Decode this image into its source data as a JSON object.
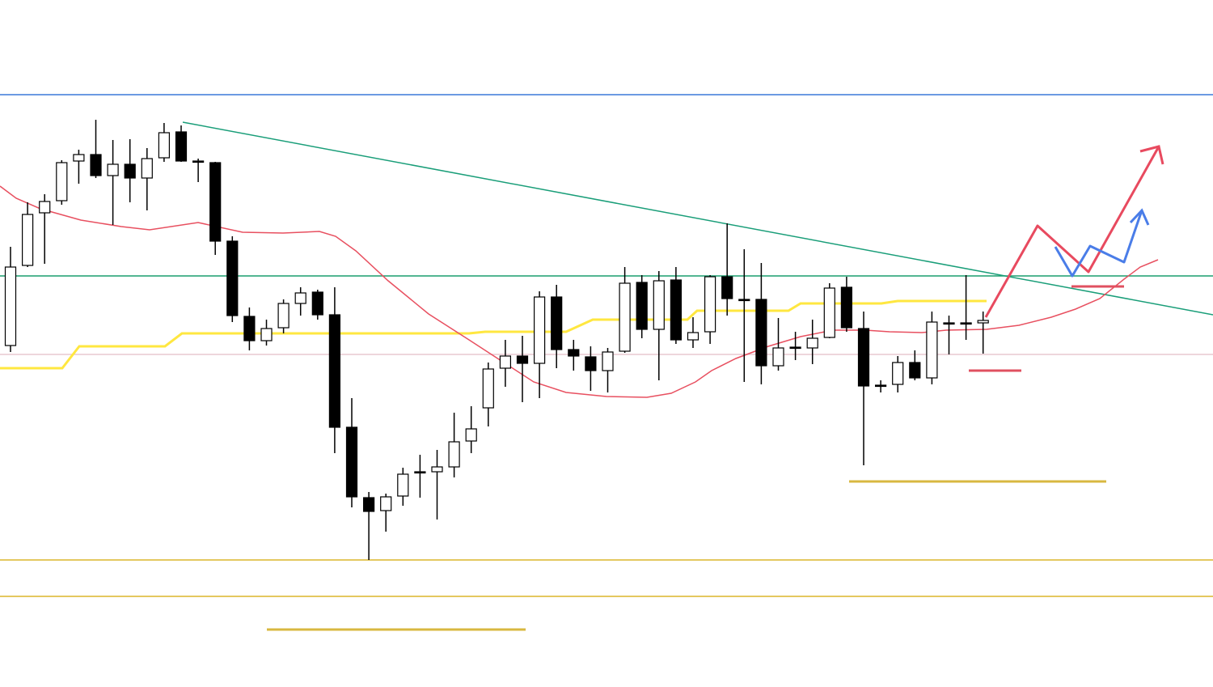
{
  "chart_data": {
    "type": "candlestick",
    "ylim": [
      0,
      849
    ],
    "up_color": "#ffffff",
    "down_color": "#000000",
    "edge_color": "#000000",
    "open": [
      422,
      521,
      586,
      601,
      650,
      658,
      632,
      646,
      629,
      654,
      686,
      650,
      648,
      551,
      458,
      428,
      444,
      474,
      488,
      460,
      321,
      234,
      218,
      236,
      266,
      266,
      272,
      304,
      345,
      394,
      409,
      400,
      482,
      417,
      408,
      391,
      415,
      500,
      442,
      503,
      429,
      439,
      507,
      479,
      479,
      397,
      420,
      419,
      432,
      494,
      443,
      373,
      374,
      401,
      382,
      450,
      450,
      450
    ],
    "high": [
      544,
      599,
      609,
      651,
      664,
      701,
      676,
      677,
      666,
      697,
      694,
      653,
      649,
      557,
      469,
      454,
      479,
      494,
      491,
      494,
      357,
      241,
      239,
      271,
      287,
      293,
      339,
      347,
      401,
      429,
      434,
      489,
      497,
      429,
      421,
      419,
      519,
      509,
      514,
      519,
      457,
      509,
      573,
      541,
      524,
      456,
      439,
      454,
      499,
      507,
      464,
      379,
      409,
      416,
      464,
      459,
      509,
      464
    ],
    "low": [
      414,
      519,
      523,
      596,
      622,
      629,
      571,
      599,
      589,
      649,
      649,
      624,
      534,
      451,
      416,
      422,
      437,
      459,
      454,
      289,
      222,
      157,
      192,
      224,
      234,
      207,
      259,
      289,
      322,
      371,
      352,
      357,
      394,
      391,
      366,
      364,
      413,
      431,
      379,
      424,
      419,
      424,
      459,
      377,
      374,
      391,
      404,
      399,
      431,
      439,
      274,
      364,
      364,
      379,
      374,
      411,
      429,
      412
    ],
    "close": [
      519,
      584,
      600,
      648,
      658,
      632,
      646,
      629,
      653,
      685,
      650,
      649,
      551,
      459,
      428,
      443,
      474,
      487,
      460,
      321,
      235,
      217,
      235,
      263,
      265,
      272,
      303,
      319,
      393,
      409,
      400,
      482,
      417,
      409,
      391,
      414,
      499,
      442,
      502,
      429,
      438,
      507,
      480,
      479,
      397,
      419,
      419,
      431,
      493,
      444,
      372,
      372,
      401,
      382,
      451,
      450,
      450,
      453
    ]
  }
}
